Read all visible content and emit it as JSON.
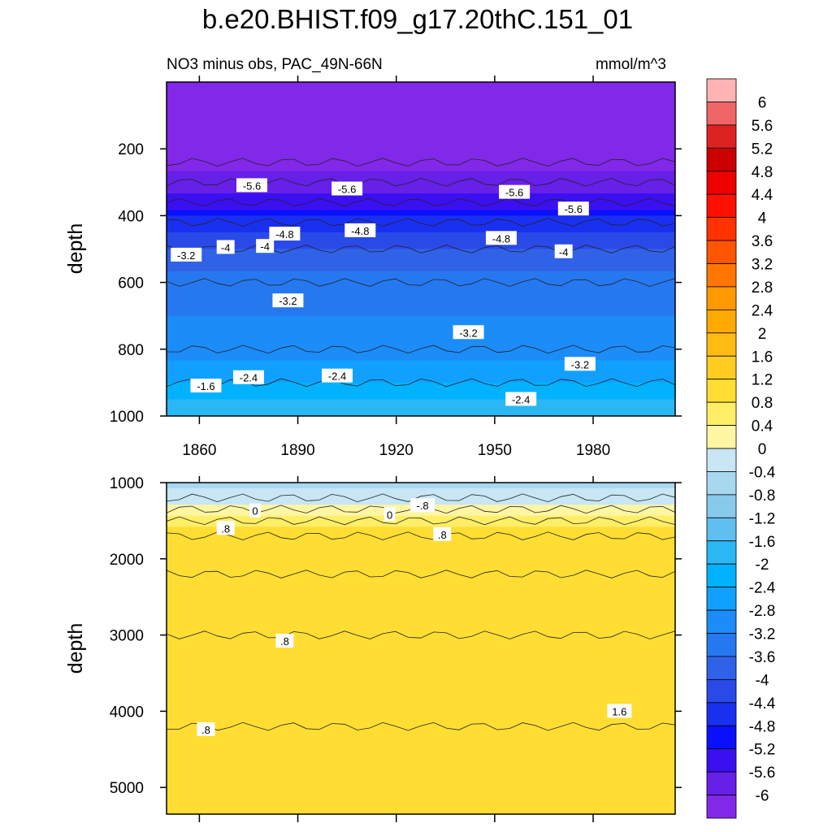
{
  "chart_data": {
    "type": "heatmap",
    "title": "b.e20.BHIST.f09_g17.20thC.151_01",
    "subtitle_left": "NO3 minus obs, PAC_49N-66N",
    "subtitle_right": "mmol/m^3",
    "ylabel": "depth",
    "x_ticks": [
      1860,
      1890,
      1920,
      1950,
      1980
    ],
    "xlim": [
      1850,
      2005
    ],
    "panels": [
      {
        "name": "upper",
        "ylim": [
          0,
          1000
        ],
        "y_ticks": [
          200,
          400,
          600,
          800,
          1000
        ],
        "bands": [
          {
            "depth": 0,
            "value": -6.2
          },
          {
            "depth": 240,
            "value": -6.2
          },
          {
            "depth": 300,
            "value": -5.8
          },
          {
            "depth": 360,
            "value": -5.4
          },
          {
            "depth": 420,
            "value": -4.6
          },
          {
            "depth": 500,
            "value": -4.0
          },
          {
            "depth": 600,
            "value": -3.4
          },
          {
            "depth": 800,
            "value": -3.0
          },
          {
            "depth": 900,
            "value": -2.4
          },
          {
            "depth": 1000,
            "value": -1.6
          }
        ],
        "contour_labels": [
          {
            "text": "-5.6",
            "x": 1876,
            "y": 310
          },
          {
            "text": "-5.6",
            "x": 1905,
            "y": 320
          },
          {
            "text": "-5.6",
            "x": 1956,
            "y": 330
          },
          {
            "text": "-5.6",
            "x": 1974,
            "y": 380
          },
          {
            "text": "-4.8",
            "x": 1886,
            "y": 455
          },
          {
            "text": "-4.8",
            "x": 1909,
            "y": 445
          },
          {
            "text": "-4.8",
            "x": 1952,
            "y": 468
          },
          {
            "text": "-4",
            "x": 1868,
            "y": 495
          },
          {
            "text": "-4",
            "x": 1880,
            "y": 492
          },
          {
            "text": "-4",
            "x": 1971,
            "y": 508
          },
          {
            "text": "-3.2",
            "x": 1856,
            "y": 518
          },
          {
            "text": "-3.2",
            "x": 1887,
            "y": 655
          },
          {
            "text": "-3.2",
            "x": 1942,
            "y": 750
          },
          {
            "text": "-3.2",
            "x": 1976,
            "y": 845
          },
          {
            "text": "-2.4",
            "x": 1875,
            "y": 885
          },
          {
            "text": "-2.4",
            "x": 1902,
            "y": 880
          },
          {
            "text": "-2.4",
            "x": 1958,
            "y": 950
          },
          {
            "text": "-1.6",
            "x": 1862,
            "y": 910
          }
        ]
      },
      {
        "name": "lower",
        "ylim": [
          1000,
          5350
        ],
        "y_ticks": [
          1000,
          2000,
          3000,
          4000,
          5000
        ],
        "bands": [
          {
            "depth": 1000,
            "value": -0.6
          },
          {
            "depth": 1200,
            "value": -0.2
          },
          {
            "depth": 1350,
            "value": 0.2
          },
          {
            "depth": 1500,
            "value": 0.6
          },
          {
            "depth": 1700,
            "value": 1.0
          },
          {
            "depth": 2200,
            "value": 1.2
          },
          {
            "depth": 3000,
            "value": 1.0
          },
          {
            "depth": 4200,
            "value": 1.0
          },
          {
            "depth": 5350,
            "value": 1.2
          }
        ],
        "contour_labels": [
          {
            "text": "0",
            "x": 1877,
            "y": 1370
          },
          {
            "text": "0",
            "x": 1918,
            "y": 1420
          },
          {
            "text": "-.8",
            "x": 1928,
            "y": 1300
          },
          {
            "text": ".8",
            "x": 1868,
            "y": 1600
          },
          {
            "text": ".8",
            "x": 1934,
            "y": 1680
          },
          {
            "text": ".8",
            "x": 1886,
            "y": 3080
          },
          {
            "text": ".8",
            "x": 1862,
            "y": 4240
          },
          {
            "text": "1.6",
            "x": 1988,
            "y": 4000
          }
        ]
      }
    ],
    "colorbar": {
      "labels": [
        "6",
        "5.6",
        "5.2",
        "4.8",
        "4.4",
        "4",
        "3.6",
        "3.2",
        "2.8",
        "2.4",
        "2",
        "1.6",
        "1.2",
        "0.8",
        "0.4",
        "0",
        "-0.4",
        "-0.8",
        "-1.2",
        "-1.6",
        "-2",
        "-2.4",
        "-2.8",
        "-3.2",
        "-3.6",
        "-4",
        "-4.4",
        "-4.8",
        "-5.2",
        "-5.6",
        "-6"
      ],
      "colors": [
        "#ffb3b3",
        "#ee6666",
        "#dd2222",
        "#cc0000",
        "#ee0000",
        "#ff1100",
        "#ff3300",
        "#ff5500",
        "#ff7700",
        "#ff9900",
        "#ffaa00",
        "#ffbb11",
        "#ffcc22",
        "#ffdd33",
        "#ffee66",
        "#fff6a3",
        "#c8e6f4",
        "#a8d8f0",
        "#88caec",
        "#60bff0",
        "#2ab7f4",
        "#00b2ff",
        "#11a0ff",
        "#1c8cf8",
        "#2678f0",
        "#3062e8",
        "#2a4ae8",
        "#1a30f0",
        "#0a10ff",
        "#3a10f0",
        "#6620e8",
        "#8228e8"
      ]
    }
  }
}
